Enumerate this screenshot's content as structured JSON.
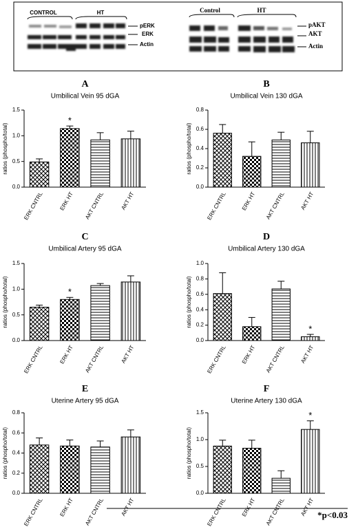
{
  "blot": {
    "left_labels": [
      "CONTROL",
      "HT"
    ],
    "left_rows": [
      "pERK",
      "ERK",
      "Actin"
    ],
    "right_labels": [
      "Control",
      "HT"
    ],
    "right_rows": [
      "pAKT",
      "AKT",
      "Actin"
    ]
  },
  "chart_data": [
    {
      "type": "bar",
      "letter": "A",
      "title": "Umbilical Vein 95 dGA",
      "y_label": "ratios (phospho/total)",
      "categories": [
        "ERK CNTRL",
        "ERK HT",
        "AKT CNTRL",
        "AKT HT"
      ],
      "values": [
        0.49,
        1.14,
        0.92,
        0.94
      ],
      "errors": [
        0.06,
        0.05,
        0.14,
        0.15
      ],
      "ylim": [
        0,
        1.5
      ],
      "yticks": [
        {
          "value": 0,
          "label": "0.0"
        },
        0.5,
        {
          "value": 1,
          "label": "1.0"
        },
        1.5
      ],
      "annotation": {
        "text": "*",
        "category": "ERK HT"
      }
    },
    {
      "type": "bar",
      "letter": "B",
      "title": "Umbilical Vein 130 dGA",
      "y_label": "ratios (phospho/total)",
      "categories": [
        "ERK CNTRL",
        "ERK HT",
        "AKT CNTRL",
        "AKT HT"
      ],
      "values": [
        0.56,
        0.32,
        0.49,
        0.46
      ],
      "errors": [
        0.09,
        0.15,
        0.08,
        0.12
      ],
      "ylim": [
        0,
        0.8
      ],
      "yticks": [
        {
          "value": 0,
          "label": "0.0"
        },
        0.2,
        0.4,
        0.6,
        0.8
      ]
    },
    {
      "type": "bar",
      "letter": "C",
      "title": "Umbilical Artery 95 dGA",
      "y_label": "ratios (phospho/total)",
      "categories": [
        "ERK CNTRL",
        "ERK HT",
        "AKT CNTRL",
        "AKT HT"
      ],
      "values": [
        0.65,
        0.8,
        1.07,
        1.14
      ],
      "errors": [
        0.04,
        0.04,
        0.04,
        0.12
      ],
      "ylim": [
        0,
        1.5
      ],
      "yticks": [
        {
          "value": 0,
          "label": "0.0"
        },
        0.5,
        {
          "value": 1,
          "label": "1.0"
        },
        1.5
      ],
      "annotation": {
        "text": "*",
        "category": "ERK HT"
      }
    },
    {
      "type": "bar",
      "letter": "D",
      "title": "Umbilical Artery 130 dGA",
      "y_label": "ratios (phospho/total)",
      "categories": [
        "ERK CNTRL",
        "ERK HT",
        "AKT CNTRL",
        "AKT HT"
      ],
      "values": [
        0.61,
        0.18,
        0.67,
        0.05
      ],
      "errors": [
        0.27,
        0.12,
        0.1,
        0.03
      ],
      "ylim": [
        0,
        1
      ],
      "yticks": [
        {
          "value": 0,
          "label": "0.0"
        },
        0.2,
        0.4,
        0.6,
        0.8,
        {
          "value": 1,
          "label": "1.0"
        }
      ],
      "annotation": {
        "text": "*",
        "category": "AKT HT"
      }
    },
    {
      "type": "bar",
      "letter": "E",
      "title": "Uterine Artery 95 dGA",
      "y_label": "ratios (phospho/total)",
      "categories": [
        "ERK CNTRL",
        "ERK HT",
        "AKT CNTRL",
        "AKT HT"
      ],
      "values": [
        0.48,
        0.47,
        0.46,
        0.56
      ],
      "errors": [
        0.07,
        0.06,
        0.06,
        0.07
      ],
      "ylim": [
        0,
        0.8
      ],
      "yticks": [
        {
          "value": 0,
          "label": "0.0"
        },
        0.2,
        0.4,
        0.6,
        0.8
      ]
    },
    {
      "type": "bar",
      "letter": "F",
      "title": "Uterine Artery 130 dGA",
      "y_label": "ratios (phospho/total)",
      "categories": [
        "ERK CNTRL",
        "ERK HT",
        "AKT CNTRL",
        "AKT HT"
      ],
      "values": [
        0.88,
        0.84,
        0.28,
        1.19
      ],
      "errors": [
        0.11,
        0.15,
        0.14,
        0.16
      ],
      "ylim": [
        0,
        1.5
      ],
      "yticks": [
        {
          "value": 0,
          "label": "0.0"
        },
        0.5,
        {
          "value": 1,
          "label": "1.0"
        },
        1.5
      ],
      "annotation": {
        "text": "*",
        "category": "AKT HT"
      }
    }
  ],
  "footnote": "*p<0.03"
}
